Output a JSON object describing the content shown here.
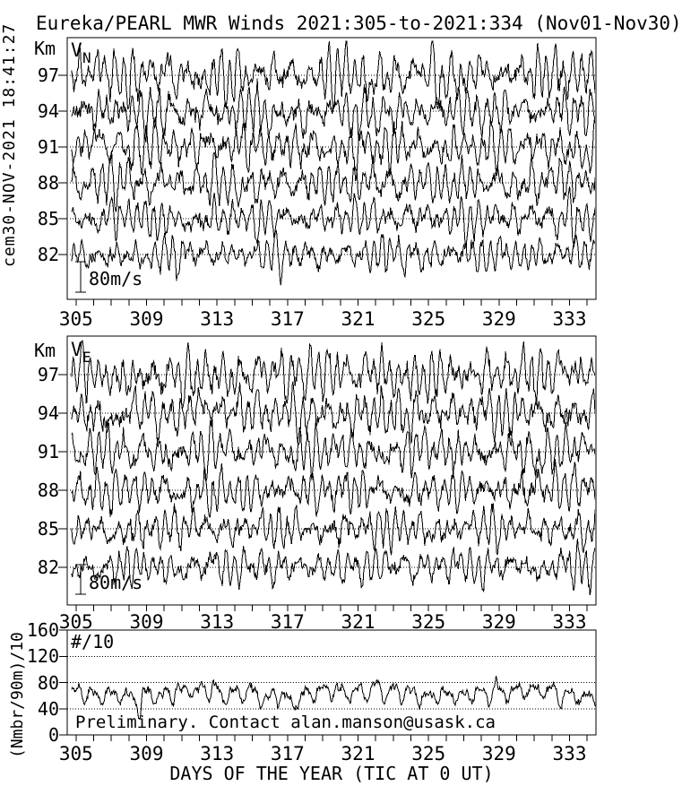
{
  "title": "Eureka/PEARL MWR Winds 2021:305-to-2021:334 (Nov01-Nov30)",
  "left_timestamp": "cem30-NOV-2021 18:41:27",
  "colors": {
    "background": "#ffffff",
    "foreground": "#000000"
  },
  "chart_data": {
    "type": "line",
    "x": {
      "label": "DAYS OF THE YEAR (TIC AT 0 UT)",
      "range": [
        304.5,
        334.5
      ],
      "minor_tick_step_days": 1,
      "major_tick_labels": [
        305,
        309,
        313,
        317,
        321,
        325,
        329,
        333
      ]
    },
    "wind_panels": [
      {
        "name": "northward-wind",
        "label_main": "V",
        "label_sub": "N",
        "y_unit": "Km",
        "altitudes_km": [
          97,
          94,
          91,
          88,
          85,
          82
        ],
        "scale_bar_label": "80m/s",
        "scale_bar_mps": 80,
        "series_description": "Hourly northward wind at six altitudes; stacked traces about dotted zero baselines; dominated by ~12-hour oscillations with peak excursions near ±90 m/s"
      },
      {
        "name": "eastward-wind",
        "label_main": "V",
        "label_sub": "E",
        "y_unit": "Km",
        "altitudes_km": [
          97,
          94,
          91,
          88,
          85,
          82
        ],
        "scale_bar_label": "80m/s",
        "scale_bar_mps": 80,
        "series_description": "Hourly eastward wind at six altitudes; stacked traces about dotted zero baselines; dominated by ~12-hour oscillations with peak excursions near ±90 m/s"
      }
    ],
    "count_panel": {
      "label": "#/10",
      "y_axis_label": "(Nmbr/90m)/10",
      "y_ticks": [
        0,
        40,
        80,
        120,
        160
      ],
      "dotted_gridlines": [
        40,
        80,
        120
      ],
      "annotation": "Preliminary. Contact alan.manson@usask.ca",
      "mean_level": 65,
      "typical_daily_range": [
        45,
        85
      ],
      "deep_dip": {
        "day": 308.6,
        "value": 25
      },
      "series_description": "Meteor echo count rate divided by 10; quasi-daily cycle oscillating mostly between 45 and 85 about a mean near 65, with a deep dip to ~25 near day 308.6"
    }
  }
}
